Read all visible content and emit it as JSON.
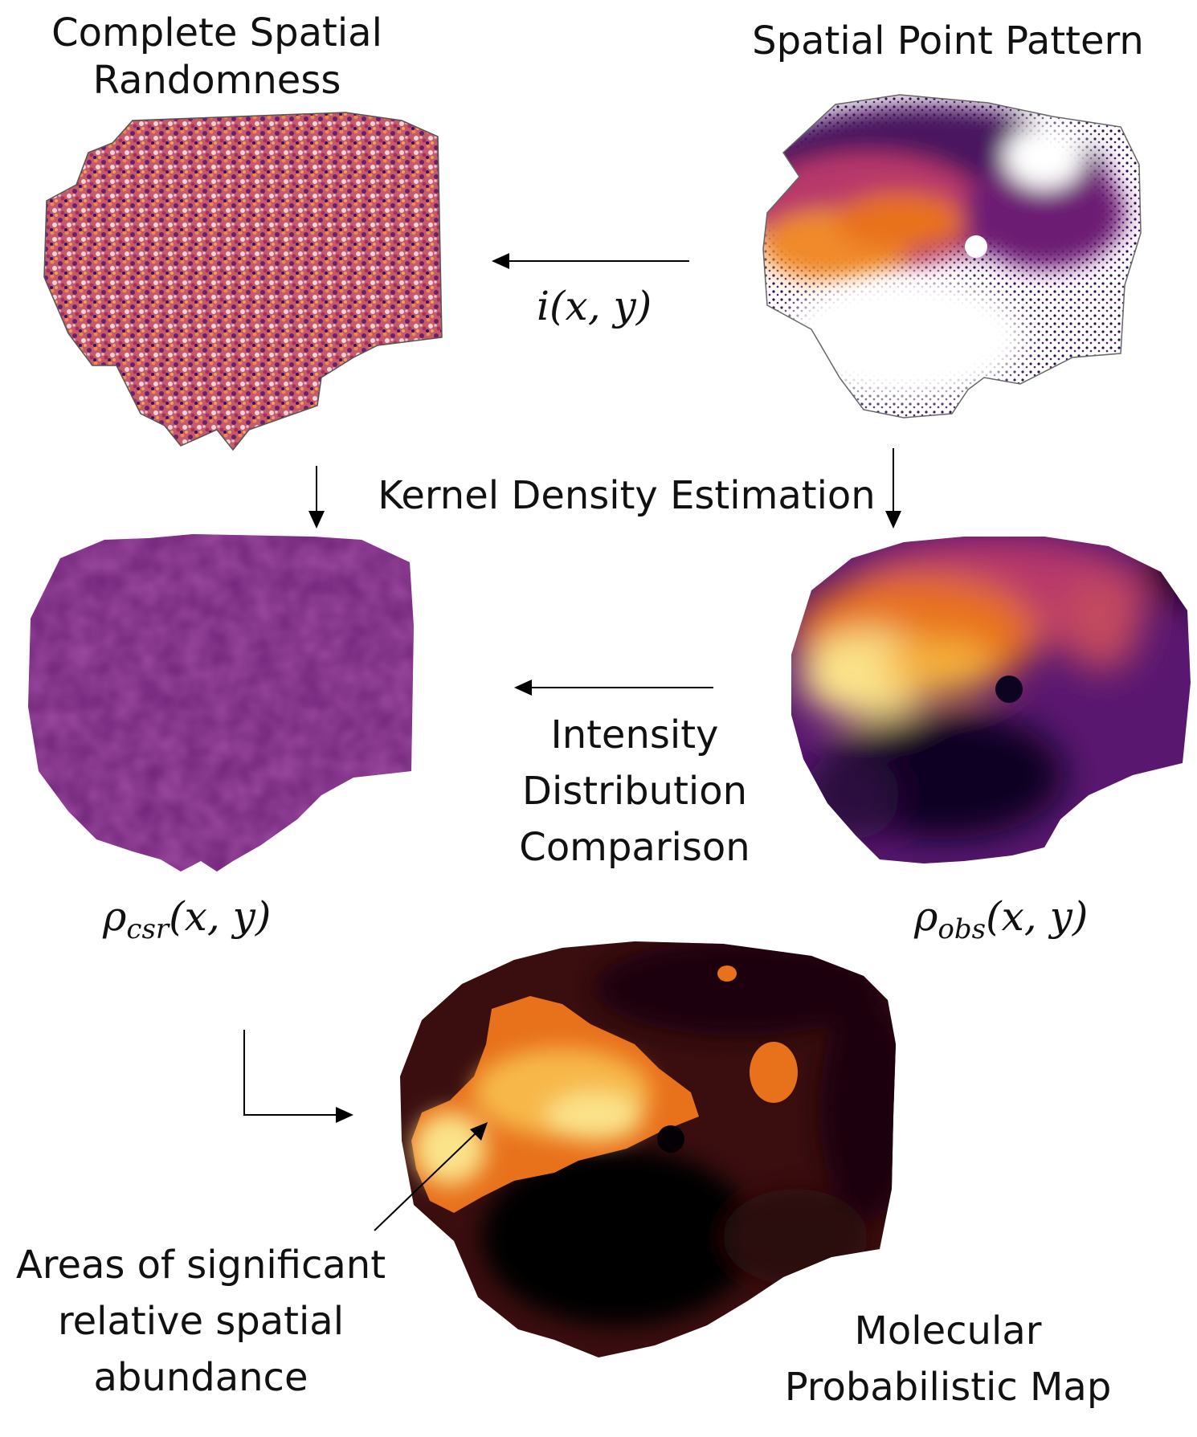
{
  "labels": {
    "csr_title": "Complete Spatial Randomness",
    "spp_title": "Spatial Point Pattern",
    "intensity_fn": "i(x, y)",
    "kde": "Kernel Density Estimation",
    "comparison_1": "Intensity",
    "comparison_2": "Distribution",
    "comparison_3": "Comparison",
    "rho_csr_symbol": "ρ",
    "rho_csr_sub": "csr",
    "rho_csr_args": "(x, y)",
    "rho_obs_symbol": "ρ",
    "rho_obs_sub": "obs",
    "rho_obs_args": "(x, y)",
    "areas_1": "Areas of significant",
    "areas_2": "relative spatial",
    "areas_3": "abundance",
    "map_1": "Molecular",
    "map_2": "Probabilistic Map"
  },
  "colors": {
    "inferno_dark": "#0d0421",
    "inferno_purple": "#5a1770",
    "inferno_magenta": "#9c2a6a",
    "inferno_orange": "#e8711c",
    "inferno_yellow": "#fbe38a",
    "csr_kde_purple": "#6e2277",
    "map_dark": "#1b0407"
  },
  "icons": [
    "arrow-left-icon",
    "arrow-down-icon",
    "elbow-arrow-icon",
    "pointer-arrow-icon"
  ]
}
